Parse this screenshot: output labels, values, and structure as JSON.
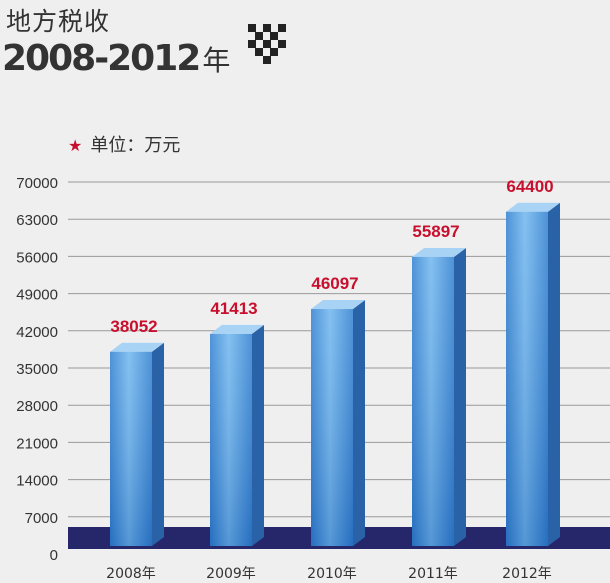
{
  "title": {
    "line1": "地方税收",
    "line2_main": "2008-2012",
    "line2_suffix": "年"
  },
  "unit_label": "单位：万元",
  "colors": {
    "bar_front": "#3a8ad6",
    "bar_front_light": "#74b8ee",
    "bar_side": "#2a62a8",
    "bar_top": "#a9d3f5",
    "base_band": "#26266a",
    "value_label": "#c8102e",
    "grid": "#9a9a9a",
    "text": "#333333"
  },
  "icons": {
    "unit_marker": "star-icon",
    "decoration": "checker-v-icon"
  },
  "chart_data": {
    "type": "bar",
    "categories": [
      "2008年",
      "2009年",
      "2010年",
      "2011年",
      "2012年"
    ],
    "values": [
      38052,
      41413,
      46097,
      55897,
      64400
    ],
    "ylim": [
      0,
      70000
    ],
    "yticks": [
      0,
      7000,
      14000,
      21000,
      28000,
      35000,
      42000,
      49000,
      56000,
      63000,
      70000
    ],
    "grid": true,
    "legend": "none"
  }
}
